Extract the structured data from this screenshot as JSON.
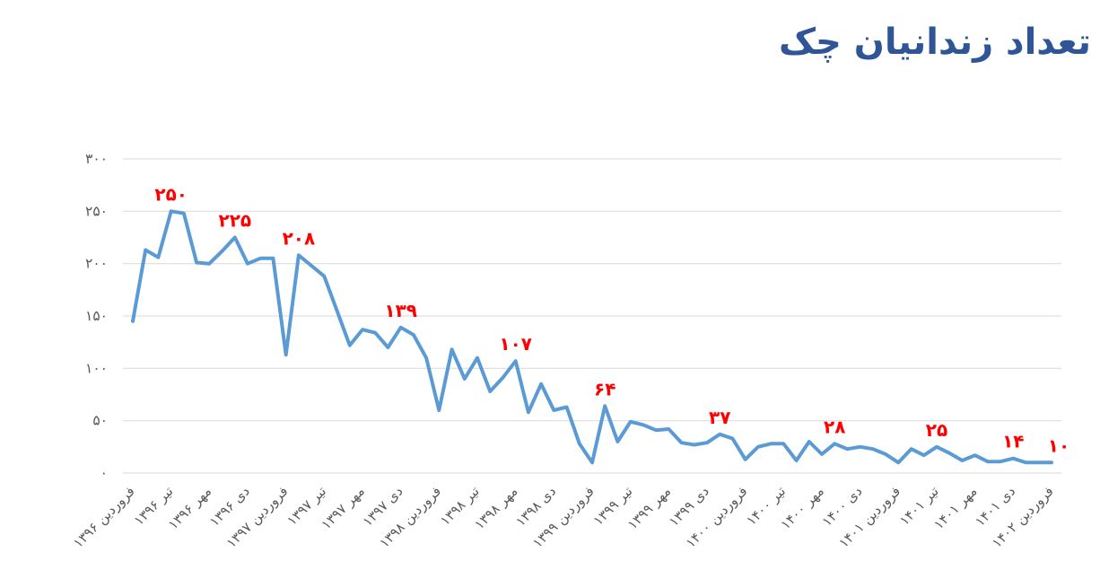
{
  "title": "تعداد زندانیان چک",
  "colors": {
    "title": "#2F5597",
    "line": "#5B9BD5",
    "data_label": "#FF0000",
    "axis_label": "#595959",
    "gridline": "#D9D9D9",
    "background": "#FFFFFF"
  },
  "chart_data": {
    "type": "line",
    "title": "تعداد زندانیان چک",
    "legend": "none",
    "grid": "horizontal",
    "ylim": [
      0,
      300
    ],
    "y_ticks": [
      {
        "value": 0,
        "label": "۰"
      },
      {
        "value": 50,
        "label": "۵۰"
      },
      {
        "value": 100,
        "label": "۱۰۰"
      },
      {
        "value": 150,
        "label": "۱۵۰"
      },
      {
        "value": 200,
        "label": "۲۰۰"
      },
      {
        "value": 250,
        "label": "۲۵۰"
      },
      {
        "value": 300,
        "label": "۳۰۰"
      }
    ],
    "x_tick_every": 3,
    "x_tick_labels": [
      "فروردین ۱۳۹۶",
      "تیر ۱۳۹۶",
      "مهر ۱۳۹۶",
      "دی ۱۳۹۶",
      "فروردین ۱۳۹۷",
      "تیر ۱۳۹۷",
      "مهر ۱۳۹۷",
      "دی ۱۳۹۷",
      "فروردین ۱۳۹۸",
      "تیر ۱۳۹۸",
      "مهر ۱۳۹۸",
      "دی ۱۳۹۸",
      "فروردین ۱۳۹۹",
      "تیر ۱۳۹۹",
      "مهر ۱۳۹۹",
      "دی ۱۳۹۹",
      "فروردین ۱۴۰۰",
      "تیر ۱۴۰۰",
      "مهر ۱۴۰۰",
      "دی ۱۴۰۰",
      "فروردین ۱۴۰۱",
      "تیر ۱۴۰۱",
      "مهر ۱۴۰۱",
      "دی ۱۴۰۱",
      "فروردین ۱۴۰۲"
    ],
    "values": [
      145,
      213,
      206,
      250,
      248,
      201,
      200,
      212,
      225,
      200,
      205,
      205,
      113,
      208,
      198,
      188,
      155,
      122,
      137,
      134,
      120,
      139,
      132,
      110,
      60,
      118,
      90,
      110,
      78,
      91,
      107,
      58,
      85,
      60,
      63,
      28,
      10,
      64,
      30,
      49,
      46,
      41,
      42,
      29,
      27,
      29,
      37,
      33,
      13,
      25,
      28,
      28,
      12,
      30,
      18,
      28,
      23,
      25,
      23,
      18,
      10,
      23,
      17,
      25,
      19,
      12,
      17,
      11,
      11,
      14,
      10,
      10,
      10
    ],
    "point_labels": [
      {
        "index": 3,
        "value": 250,
        "text": "۲۵۰"
      },
      {
        "index": 8,
        "value": 225,
        "text": "۲۲۵"
      },
      {
        "index": 13,
        "value": 208,
        "text": "۲۰۸"
      },
      {
        "index": 21,
        "value": 139,
        "text": "۱۳۹"
      },
      {
        "index": 30,
        "value": 107,
        "text": "۱۰۷"
      },
      {
        "index": 37,
        "value": 64,
        "text": "۶۴"
      },
      {
        "index": 46,
        "value": 37,
        "text": "۳۷"
      },
      {
        "index": 55,
        "value": 28,
        "text": "۲۸"
      },
      {
        "index": 63,
        "value": 25,
        "text": "۲۵"
      },
      {
        "index": 69,
        "value": 14,
        "text": "۱۴"
      },
      {
        "index": 72,
        "value": 10,
        "text": "۱۰"
      }
    ]
  }
}
